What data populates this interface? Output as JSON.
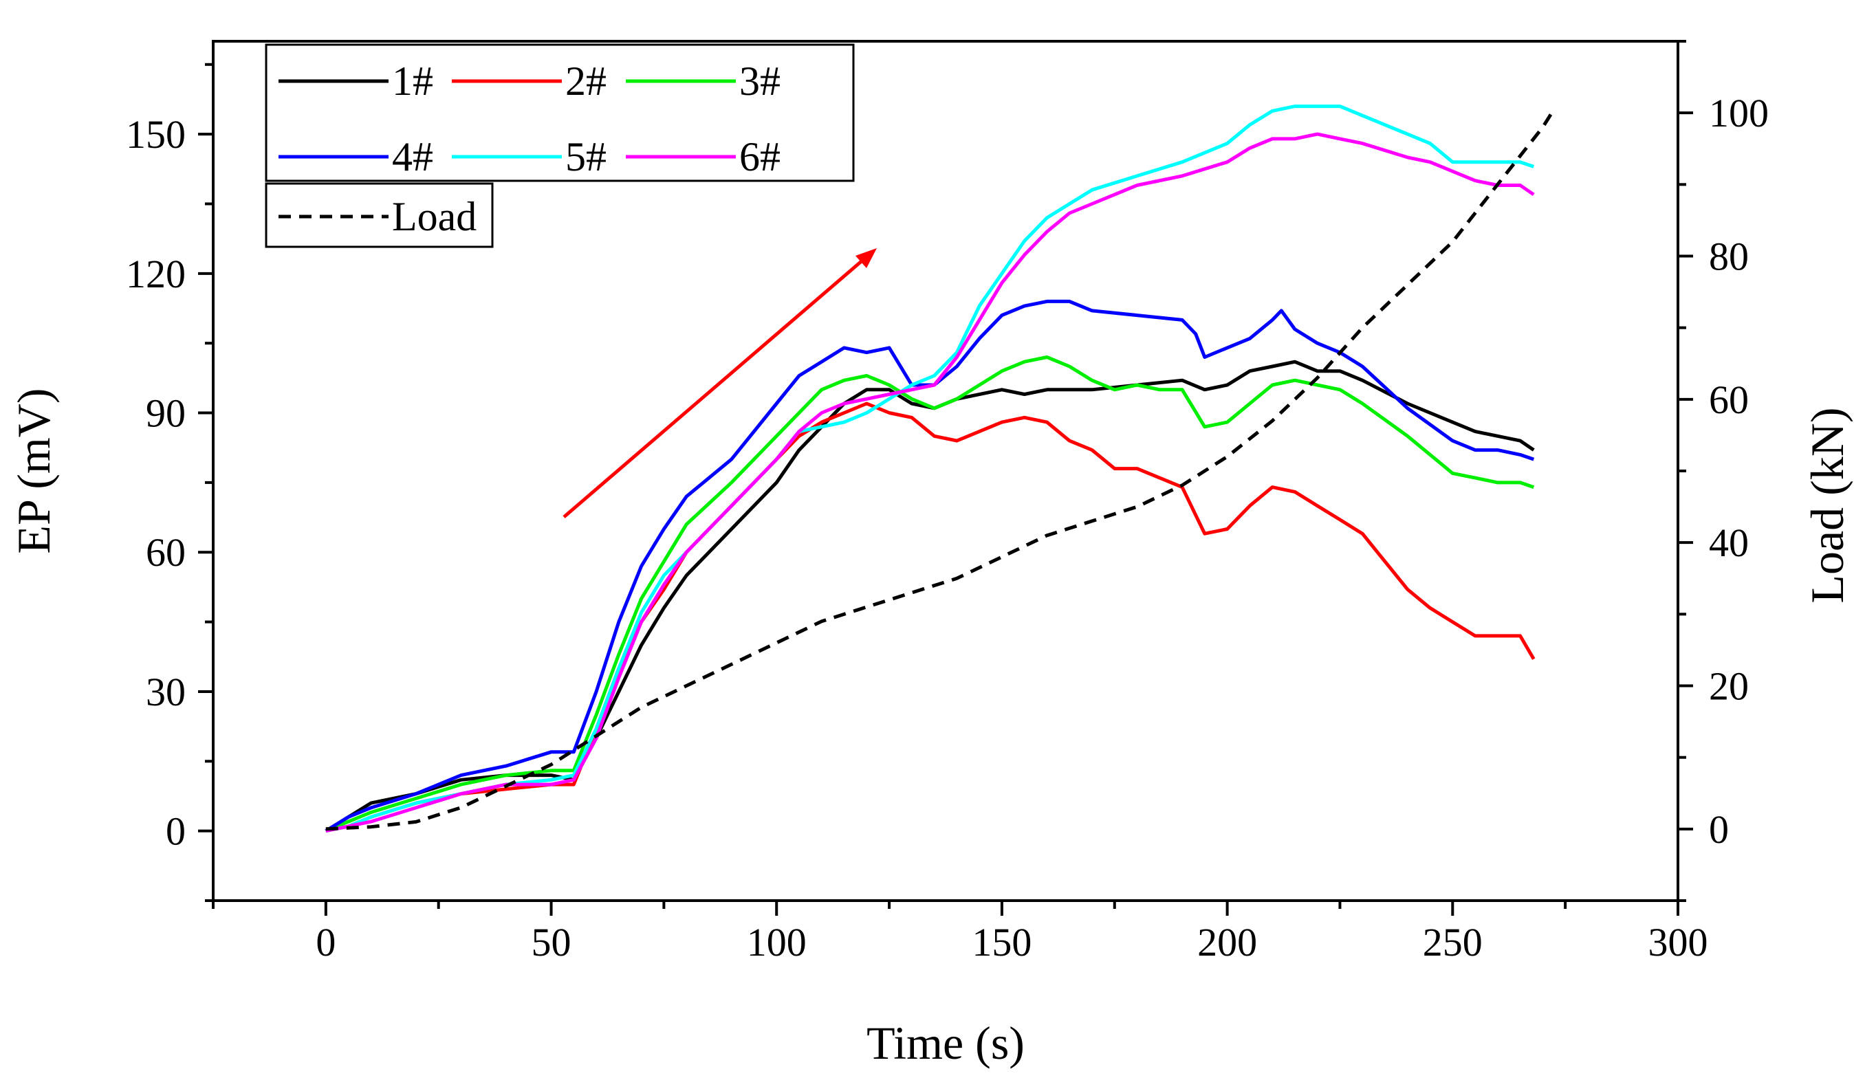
{
  "chart_data": {
    "type": "line",
    "xlabel": "Time (s)",
    "ylabel_left": "EP (mV)",
    "ylabel_right": "Load (kN)",
    "xlim": [
      -25,
      300
    ],
    "ylim_left": [
      -15,
      170
    ],
    "ylim_right": [
      -10,
      110
    ],
    "xticks": [
      0,
      50,
      100,
      150,
      200,
      250,
      300
    ],
    "yticks_left": [
      0,
      30,
      60,
      90,
      120,
      150
    ],
    "yticks_right": [
      0,
      20,
      40,
      60,
      80,
      100
    ],
    "grid": false,
    "legend_position": "top-left",
    "annotation": "red arrow indicating rising trend",
    "series": [
      {
        "name": "1#",
        "color": "#000000",
        "axis": "left",
        "dash": false,
        "x": [
          0,
          5,
          10,
          20,
          30,
          40,
          50,
          55,
          60,
          65,
          70,
          75,
          80,
          90,
          100,
          105,
          110,
          115,
          120,
          125,
          130,
          135,
          140,
          150,
          155,
          160,
          170,
          180,
          190,
          195,
          200,
          205,
          210,
          215,
          220,
          225,
          230,
          240,
          250,
          255,
          260,
          265,
          268
        ],
        "y": [
          0,
          3,
          6,
          8,
          11,
          12,
          12,
          11,
          20,
          30,
          40,
          48,
          55,
          65,
          75,
          82,
          87,
          92,
          95,
          95,
          92,
          91,
          93,
          95,
          94,
          95,
          95,
          96,
          97,
          95,
          96,
          99,
          100,
          101,
          99,
          99,
          97,
          92,
          88,
          86,
          85,
          84,
          82
        ]
      },
      {
        "name": "2#",
        "color": "#ff0000",
        "axis": "left",
        "dash": false,
        "x": [
          0,
          5,
          10,
          20,
          30,
          40,
          50,
          55,
          60,
          65,
          70,
          75,
          80,
          90,
          100,
          105,
          110,
          115,
          120,
          125,
          130,
          135,
          140,
          145,
          150,
          155,
          160,
          165,
          170,
          175,
          180,
          185,
          190,
          193,
          195,
          200,
          205,
          210,
          215,
          220,
          225,
          230,
          235,
          240,
          245,
          250,
          255,
          260,
          265,
          268
        ],
        "y": [
          0,
          1,
          3,
          6,
          8,
          9,
          10,
          10,
          22,
          35,
          45,
          52,
          60,
          70,
          80,
          85,
          88,
          90,
          92,
          90,
          89,
          85,
          84,
          86,
          88,
          89,
          88,
          84,
          82,
          78,
          78,
          76,
          74,
          68,
          64,
          65,
          70,
          74,
          73,
          70,
          67,
          64,
          58,
          52,
          48,
          45,
          42,
          42,
          42,
          37
        ]
      },
      {
        "name": "3#",
        "color": "#00ee00",
        "axis": "left",
        "dash": false,
        "x": [
          0,
          5,
          10,
          20,
          30,
          40,
          50,
          55,
          60,
          65,
          70,
          75,
          80,
          90,
          100,
          105,
          110,
          115,
          120,
          125,
          130,
          135,
          140,
          145,
          150,
          155,
          160,
          165,
          170,
          175,
          180,
          185,
          190,
          195,
          200,
          205,
          210,
          215,
          220,
          225,
          230,
          240,
          250,
          255,
          260,
          265,
          268
        ],
        "y": [
          0,
          2,
          4,
          7,
          10,
          12,
          13,
          13,
          25,
          38,
          50,
          58,
          66,
          75,
          85,
          90,
          95,
          97,
          98,
          96,
          93,
          91,
          93,
          96,
          99,
          101,
          102,
          100,
          97,
          95,
          96,
          95,
          95,
          87,
          88,
          92,
          96,
          97,
          96,
          95,
          92,
          85,
          77,
          76,
          75,
          75,
          74
        ]
      },
      {
        "name": "4#",
        "color": "#0000ff",
        "axis": "left",
        "dash": false,
        "x": [
          0,
          5,
          10,
          20,
          30,
          40,
          50,
          55,
          60,
          65,
          70,
          75,
          80,
          90,
          100,
          105,
          110,
          115,
          120,
          125,
          130,
          135,
          140,
          145,
          150,
          155,
          160,
          165,
          170,
          180,
          190,
          193,
          195,
          200,
          205,
          210,
          212,
          215,
          220,
          225,
          230,
          240,
          250,
          255,
          260,
          265,
          268
        ],
        "y": [
          0,
          3,
          5,
          8,
          12,
          14,
          17,
          17,
          30,
          45,
          57,
          65,
          72,
          80,
          92,
          98,
          101,
          104,
          103,
          104,
          96,
          96,
          100,
          106,
          111,
          113,
          114,
          114,
          112,
          111,
          110,
          107,
          102,
          104,
          106,
          110,
          112,
          108,
          105,
          103,
          100,
          91,
          84,
          82,
          82,
          81,
          80
        ]
      },
      {
        "name": "5#",
        "color": "#00ffff",
        "axis": "left",
        "dash": false,
        "x": [
          0,
          5,
          10,
          20,
          30,
          40,
          50,
          55,
          60,
          65,
          70,
          75,
          80,
          90,
          100,
          105,
          110,
          115,
          120,
          125,
          130,
          135,
          140,
          145,
          150,
          155,
          160,
          165,
          170,
          180,
          190,
          200,
          205,
          210,
          215,
          220,
          225,
          230,
          240,
          245,
          250,
          255,
          260,
          265,
          268
        ],
        "y": [
          0,
          1,
          3,
          6,
          8,
          10,
          11,
          12,
          22,
          35,
          47,
          55,
          60,
          70,
          80,
          86,
          87,
          88,
          90,
          93,
          96,
          98,
          103,
          113,
          120,
          127,
          132,
          135,
          138,
          141,
          144,
          148,
          152,
          155,
          156,
          156,
          156,
          154,
          150,
          148,
          144,
          144,
          144,
          144,
          143
        ]
      },
      {
        "name": "6#",
        "color": "#ff00ff",
        "axis": "left",
        "dash": false,
        "x": [
          0,
          5,
          10,
          20,
          30,
          40,
          50,
          55,
          60,
          65,
          70,
          75,
          80,
          90,
          100,
          105,
          110,
          115,
          120,
          125,
          130,
          135,
          140,
          145,
          150,
          155,
          160,
          165,
          170,
          180,
          190,
          200,
          205,
          210,
          215,
          220,
          225,
          230,
          240,
          245,
          250,
          255,
          260,
          265,
          268
        ],
        "y": [
          0,
          1,
          2,
          5,
          8,
          10,
          10,
          11,
          20,
          33,
          45,
          53,
          60,
          70,
          80,
          86,
          90,
          92,
          93,
          94,
          95,
          96,
          102,
          110,
          118,
          124,
          129,
          133,
          135,
          139,
          141,
          144,
          147,
          149,
          149,
          150,
          149,
          148,
          145,
          144,
          142,
          140,
          139,
          139,
          137
        ]
      },
      {
        "name": "Load",
        "color": "#000000",
        "axis": "right",
        "dash": true,
        "x": [
          0,
          10,
          20,
          30,
          40,
          50,
          60,
          70,
          80,
          90,
          100,
          110,
          120,
          130,
          140,
          150,
          160,
          170,
          180,
          190,
          200,
          210,
          220,
          230,
          240,
          250,
          260,
          265,
          270,
          272
        ],
        "y": [
          0,
          0.3,
          1,
          3,
          6,
          9,
          13,
          17,
          20,
          23,
          26,
          29,
          31,
          33,
          35,
          38,
          41,
          43,
          45,
          48,
          52,
          57,
          63,
          70,
          76,
          82,
          90,
          94,
          98,
          100
        ]
      }
    ]
  }
}
